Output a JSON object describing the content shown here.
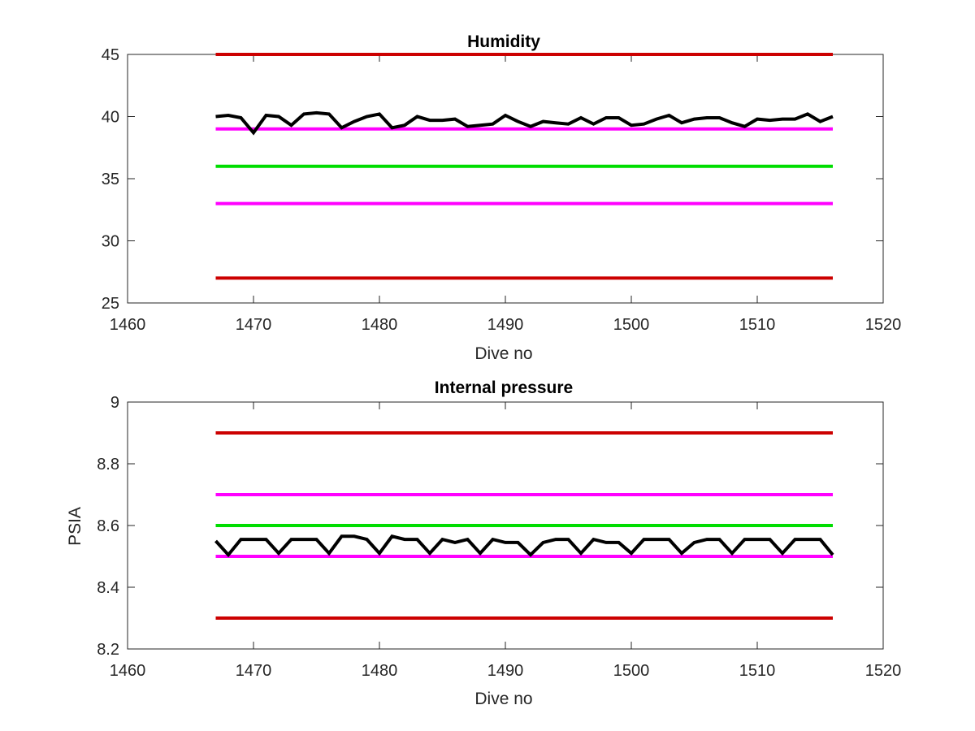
{
  "chart_data": [
    {
      "type": "line",
      "title": "Humidity",
      "xlabel": "Dive no",
      "ylabel": "",
      "xlim": [
        1460,
        1520
      ],
      "ylim": [
        25,
        45
      ],
      "xticks": [
        "1460",
        "1470",
        "1480",
        "1490",
        "1500",
        "1510",
        "1520"
      ],
      "yticks": [
        "25",
        "30",
        "35",
        "40",
        "45"
      ],
      "grid": false,
      "reference_lines": [
        {
          "y": 45,
          "x": [
            1467,
            1516
          ],
          "color": "#cc0000"
        },
        {
          "y": 39,
          "x": [
            1467,
            1516
          ],
          "color": "#ff00ff"
        },
        {
          "y": 36,
          "x": [
            1467,
            1516
          ],
          "color": "#00dd00"
        },
        {
          "y": 33,
          "x": [
            1467,
            1516
          ],
          "color": "#ff00ff"
        },
        {
          "y": 27,
          "x": [
            1467,
            1516
          ],
          "color": "#cc0000"
        }
      ],
      "series": [
        {
          "color": "#000000",
          "x": [
            1467,
            1468,
            1469,
            1470,
            1471,
            1472,
            1473,
            1474,
            1475,
            1476,
            1477,
            1478,
            1479,
            1480,
            1481,
            1482,
            1483,
            1484,
            1485,
            1486,
            1487,
            1488,
            1489,
            1490,
            1491,
            1492,
            1493,
            1494,
            1495,
            1496,
            1497,
            1498,
            1499,
            1500,
            1501,
            1502,
            1503,
            1504,
            1505,
            1506,
            1507,
            1508,
            1509,
            1510,
            1511,
            1512,
            1513,
            1514,
            1515,
            1516
          ],
          "values": [
            40.0,
            40.1,
            39.9,
            38.7,
            40.1,
            40.0,
            39.3,
            40.2,
            40.3,
            40.2,
            39.1,
            39.6,
            40.0,
            40.2,
            39.1,
            39.3,
            40.0,
            39.7,
            39.7,
            39.8,
            39.2,
            39.3,
            39.4,
            40.1,
            39.6,
            39.2,
            39.6,
            39.5,
            39.4,
            39.9,
            39.4,
            39.9,
            39.9,
            39.3,
            39.4,
            39.8,
            40.1,
            39.5,
            39.8,
            39.9,
            39.9,
            39.5,
            39.2,
            39.8,
            39.7,
            39.8,
            39.8,
            40.2,
            39.6,
            40.0
          ]
        }
      ]
    },
    {
      "type": "line",
      "title": "Internal pressure",
      "xlabel": "Dive no",
      "ylabel": "PSIA",
      "xlim": [
        1460,
        1520
      ],
      "ylim": [
        8.2,
        9.0
      ],
      "xticks": [
        "1460",
        "1470",
        "1480",
        "1490",
        "1500",
        "1510",
        "1520"
      ],
      "yticks": [
        "8.2",
        "8.4",
        "8.6",
        "8.8",
        "9"
      ],
      "grid": false,
      "reference_lines": [
        {
          "y": 8.9,
          "x": [
            1467,
            1516
          ],
          "color": "#cc0000"
        },
        {
          "y": 8.7,
          "x": [
            1467,
            1516
          ],
          "color": "#ff00ff"
        },
        {
          "y": 8.6,
          "x": [
            1467,
            1516
          ],
          "color": "#00dd00"
        },
        {
          "y": 8.5,
          "x": [
            1467,
            1516
          ],
          "color": "#ff00ff"
        },
        {
          "y": 8.3,
          "x": [
            1467,
            1516
          ],
          "color": "#cc0000"
        }
      ],
      "series": [
        {
          "color": "#000000",
          "x": [
            1467,
            1468,
            1469,
            1470,
            1471,
            1472,
            1473,
            1474,
            1475,
            1476,
            1477,
            1478,
            1479,
            1480,
            1481,
            1482,
            1483,
            1484,
            1485,
            1486,
            1487,
            1488,
            1489,
            1490,
            1491,
            1492,
            1493,
            1494,
            1495,
            1496,
            1497,
            1498,
            1499,
            1500,
            1501,
            1502,
            1503,
            1504,
            1505,
            1506,
            1507,
            1508,
            1509,
            1510,
            1511,
            1512,
            1513,
            1514,
            1515,
            1516
          ],
          "values": [
            8.55,
            8.505,
            8.555,
            8.555,
            8.555,
            8.51,
            8.555,
            8.555,
            8.555,
            8.51,
            8.565,
            8.565,
            8.555,
            8.51,
            8.565,
            8.555,
            8.555,
            8.51,
            8.555,
            8.545,
            8.555,
            8.51,
            8.555,
            8.545,
            8.545,
            8.505,
            8.545,
            8.555,
            8.555,
            8.51,
            8.555,
            8.545,
            8.545,
            8.51,
            8.555,
            8.555,
            8.555,
            8.51,
            8.545,
            8.555,
            8.555,
            8.51,
            8.555,
            8.555,
            8.555,
            8.51,
            8.555,
            8.555,
            8.555,
            8.505
          ]
        }
      ]
    }
  ]
}
